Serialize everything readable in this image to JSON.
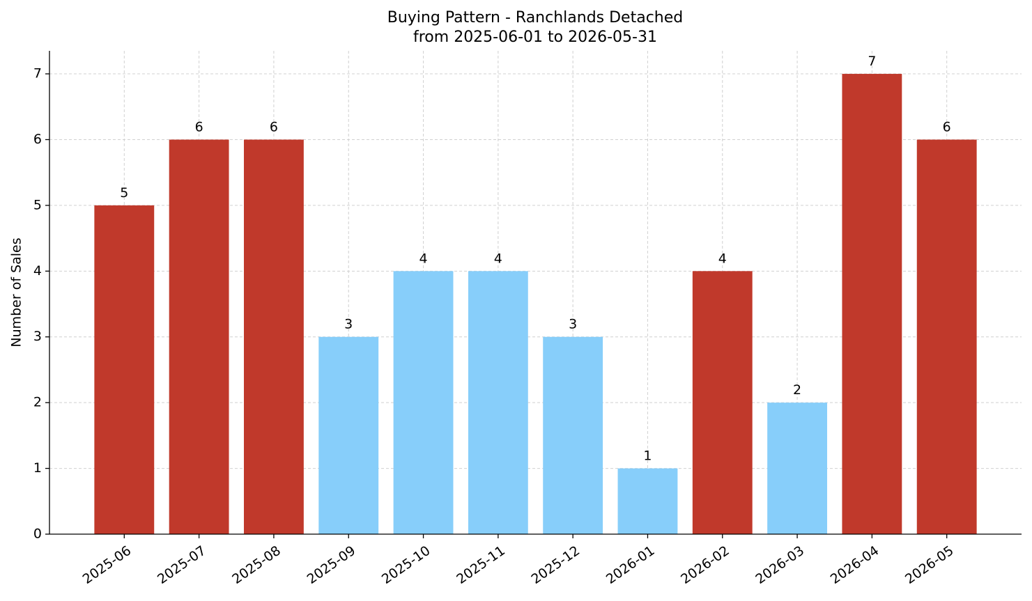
{
  "chart_data": {
    "type": "bar",
    "title": "Buying Pattern - Ranchlands Detached",
    "subtitle": "from 2025-06-01 to 2026-05-31",
    "y_label": "Number of Sales",
    "categories": [
      "2025-06",
      "2025-07",
      "2025-08",
      "2025-09",
      "2025-10",
      "2025-11",
      "2025-12",
      "2026-01",
      "2026-02",
      "2026-03",
      "2026-04",
      "2026-05"
    ],
    "values": [
      5,
      6,
      6,
      3,
      4,
      4,
      3,
      1,
      4,
      2,
      7,
      6
    ],
    "colors": [
      "#c0392b",
      "#c0392b",
      "#c0392b",
      "#87cefa",
      "#87cefa",
      "#87cefa",
      "#87cefa",
      "#87cefa",
      "#c0392b",
      "#87cefa",
      "#c0392b",
      "#c0392b"
    ],
    "ylim": [
      0,
      7.35
    ],
    "yticks": [
      0,
      1,
      2,
      3,
      4,
      5,
      6,
      7
    ],
    "grid": true
  }
}
